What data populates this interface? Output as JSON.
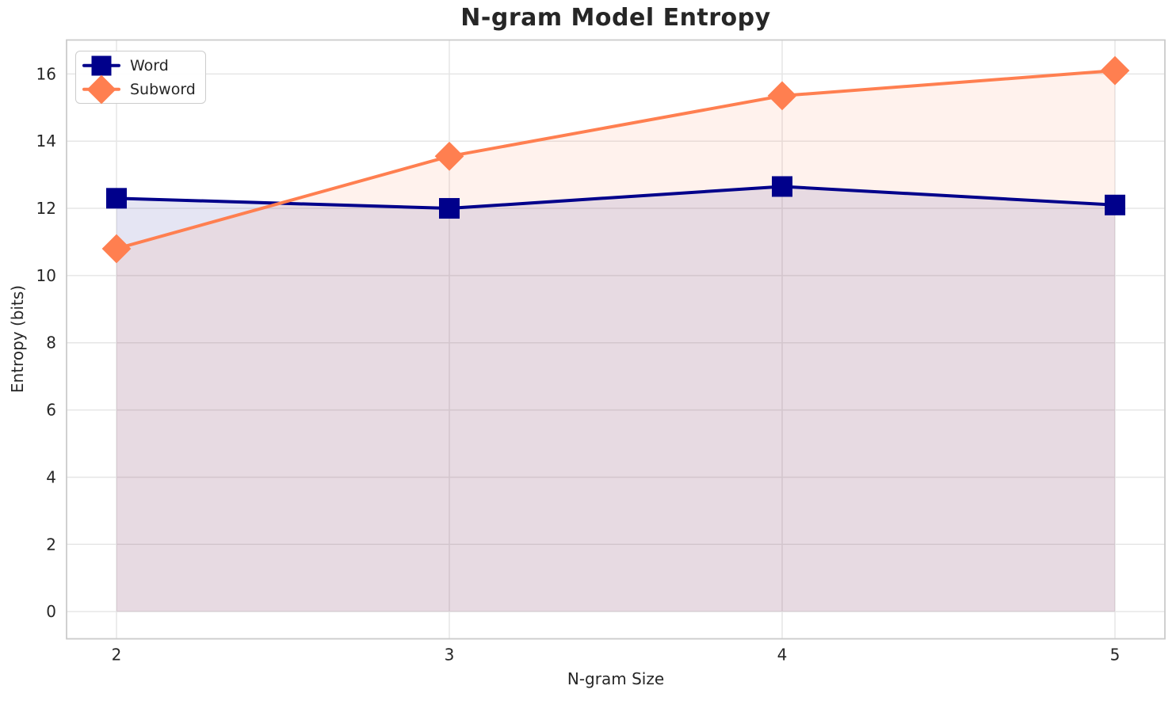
{
  "figure": {
    "background": "#ffffff"
  },
  "chart_data": {
    "type": "line",
    "title": "N-gram Model Entropy",
    "xlabel": "N-gram Size",
    "ylabel": "Entropy (bits)",
    "x": [
      2,
      3,
      4,
      5
    ],
    "xticks": [
      "2",
      "3",
      "4",
      "5"
    ],
    "yticks": [
      0,
      2,
      4,
      6,
      8,
      10,
      12,
      14,
      16
    ],
    "xlim": [
      1.85,
      5.15
    ],
    "ylim": [
      -0.81,
      17.01
    ],
    "grid": true,
    "legend_position": "upper left",
    "fill_baseline": 0,
    "fill_alpha": 0.1,
    "series": [
      {
        "name": "Word",
        "marker": "square",
        "color": "#00008B",
        "values": [
          12.3,
          12.0,
          12.65,
          12.1
        ]
      },
      {
        "name": "Subword",
        "marker": "diamond",
        "color": "#FF7F50",
        "values": [
          10.8,
          13.55,
          15.35,
          16.1
        ]
      }
    ]
  },
  "colors": {
    "grid": "#e6e6e6",
    "spine": "#cbcbcb",
    "text": "#262626",
    "legend_border": "#cccccc"
  }
}
